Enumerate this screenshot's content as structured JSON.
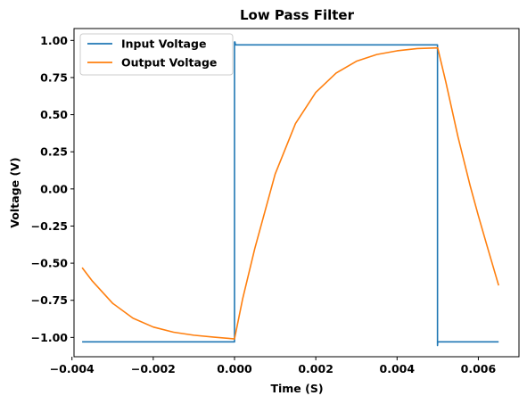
{
  "chart_data": {
    "type": "line",
    "title": "Low Pass Filter",
    "xlabel": "Time (S)",
    "ylabel": "Voltage (V)",
    "xlim": [
      -0.00395,
      0.007
    ],
    "ylim": [
      -1.13,
      1.08
    ],
    "x_ticks": [
      -0.004,
      -0.002,
      0.0,
      0.002,
      0.004,
      0.006
    ],
    "x_tick_labels": [
      "−0.004",
      "−0.002",
      "0.000",
      "0.002",
      "0.004",
      "0.006"
    ],
    "y_ticks": [
      -1.0,
      -0.75,
      -0.5,
      -0.25,
      0.0,
      0.25,
      0.5,
      0.75,
      1.0
    ],
    "y_tick_labels": [
      "−1.00",
      "−0.75",
      "−0.50",
      "−0.25",
      "0.00",
      "0.25",
      "0.50",
      "0.75",
      "1.00"
    ],
    "grid": false,
    "legend_position": "top-left",
    "series": [
      {
        "name": "Input Voltage",
        "color": "#1f77b4",
        "x": [
          -0.00375,
          0.0,
          0.0,
          1e-05,
          2e-05,
          3e-05,
          0.004995,
          0.004995,
          0.005,
          0.00503,
          0.0065
        ],
        "y": [
          -1.03,
          -1.03,
          0.99,
          0.99,
          0.975,
          0.97,
          0.97,
          -1.055,
          -1.03,
          -1.03,
          -1.03
        ]
      },
      {
        "name": "Output Voltage",
        "color": "#ff7f0e",
        "x": [
          -0.00375,
          -0.0035,
          -0.003,
          -0.0025,
          -0.002,
          -0.0015,
          -0.001,
          -0.0005,
          0.0,
          0.0002,
          0.0005,
          0.001,
          0.0015,
          0.002,
          0.0025,
          0.003,
          0.0035,
          0.004,
          0.0045,
          0.005,
          0.0052,
          0.0055,
          0.0058,
          0.006,
          0.0062,
          0.0065
        ],
        "y": [
          -0.53,
          -0.62,
          -0.77,
          -0.87,
          -0.93,
          -0.965,
          -0.985,
          -0.998,
          -1.01,
          -0.74,
          -0.4,
          0.1,
          0.44,
          0.65,
          0.78,
          0.86,
          0.905,
          0.93,
          0.945,
          0.95,
          0.72,
          0.35,
          0.02,
          -0.18,
          -0.37,
          -0.65
        ]
      }
    ]
  }
}
